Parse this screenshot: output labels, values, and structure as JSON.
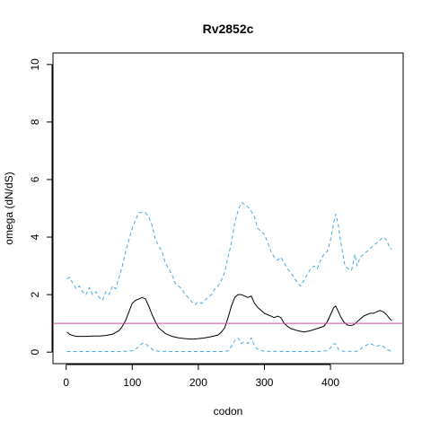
{
  "chart_data": {
    "type": "line",
    "title": "Rv2852c",
    "xlabel": "codon",
    "ylabel": "omega (dN/dS)",
    "xlim": [
      -20,
      510
    ],
    "ylim": [
      -0.4,
      10.4
    ],
    "x_ticks": [
      0,
      100,
      200,
      300,
      400
    ],
    "y_ticks": [
      0,
      2,
      4,
      6,
      8,
      10
    ],
    "grid": false,
    "reference_line": {
      "y": 1,
      "color": "#c050a0"
    },
    "series": [
      {
        "style": "dashed",
        "color": "#4aa8e0",
        "points": [
          [
            1,
            2.55
          ],
          [
            5,
            2.6
          ],
          [
            10,
            2.4
          ],
          [
            15,
            2.2
          ],
          [
            20,
            2.3
          ],
          [
            25,
            2.1
          ],
          [
            30,
            2.0
          ],
          [
            35,
            2.25
          ],
          [
            40,
            2.0
          ],
          [
            45,
            2.1
          ],
          [
            50,
            1.9
          ],
          [
            55,
            1.8
          ],
          [
            60,
            2.1
          ],
          [
            65,
            2.0
          ],
          [
            70,
            2.3
          ],
          [
            75,
            2.2
          ],
          [
            80,
            2.6
          ],
          [
            85,
            3.0
          ],
          [
            90,
            3.5
          ],
          [
            95,
            3.9
          ],
          [
            100,
            4.3
          ],
          [
            105,
            4.6
          ],
          [
            110,
            4.85
          ],
          [
            115,
            4.85
          ],
          [
            120,
            4.85
          ],
          [
            125,
            4.7
          ],
          [
            130,
            4.4
          ],
          [
            135,
            3.9
          ],
          [
            140,
            3.7
          ],
          [
            145,
            3.5
          ],
          [
            150,
            3.1
          ],
          [
            155,
            2.9
          ],
          [
            160,
            2.7
          ],
          [
            165,
            2.4
          ],
          [
            170,
            2.3
          ],
          [
            175,
            2.2
          ],
          [
            180,
            2.0
          ],
          [
            185,
            1.9
          ],
          [
            190,
            1.75
          ],
          [
            195,
            1.65
          ],
          [
            200,
            1.75
          ],
          [
            205,
            1.7
          ],
          [
            210,
            1.8
          ],
          [
            215,
            1.9
          ],
          [
            220,
            2.0
          ],
          [
            225,
            2.2
          ],
          [
            230,
            2.3
          ],
          [
            235,
            2.5
          ],
          [
            240,
            2.8
          ],
          [
            245,
            3.3
          ],
          [
            250,
            3.8
          ],
          [
            255,
            4.5
          ],
          [
            260,
            4.9
          ],
          [
            265,
            5.2
          ],
          [
            270,
            5.15
          ],
          [
            275,
            5.05
          ],
          [
            280,
            4.9
          ],
          [
            285,
            4.7
          ],
          [
            290,
            4.3
          ],
          [
            295,
            4.2
          ],
          [
            300,
            4.1
          ],
          [
            305,
            3.8
          ],
          [
            310,
            3.5
          ],
          [
            315,
            3.3
          ],
          [
            320,
            3.2
          ],
          [
            325,
            3.3
          ],
          [
            330,
            3.1
          ],
          [
            335,
            2.9
          ],
          [
            340,
            2.75
          ],
          [
            345,
            2.6
          ],
          [
            350,
            2.4
          ],
          [
            355,
            2.3
          ],
          [
            360,
            2.5
          ],
          [
            365,
            2.7
          ],
          [
            370,
            2.9
          ],
          [
            375,
            3.0
          ],
          [
            380,
            2.9
          ],
          [
            385,
            3.2
          ],
          [
            390,
            3.4
          ],
          [
            395,
            3.5
          ],
          [
            400,
            3.9
          ],
          [
            405,
            4.5
          ],
          [
            408,
            4.8
          ],
          [
            412,
            4.4
          ],
          [
            415,
            3.9
          ],
          [
            418,
            3.5
          ],
          [
            422,
            3.0
          ],
          [
            427,
            2.9
          ],
          [
            432,
            2.85
          ],
          [
            437,
            3.4
          ],
          [
            440,
            3.0
          ],
          [
            445,
            3.3
          ],
          [
            450,
            3.4
          ],
          [
            455,
            3.5
          ],
          [
            460,
            3.6
          ],
          [
            465,
            3.7
          ],
          [
            470,
            3.8
          ],
          [
            475,
            3.9
          ],
          [
            480,
            4.0
          ],
          [
            485,
            3.9
          ],
          [
            490,
            3.6
          ],
          [
            493,
            3.6
          ]
        ]
      },
      {
        "style": "solid",
        "color": "#000000",
        "points": [
          [
            1,
            0.7
          ],
          [
            5,
            0.62
          ],
          [
            10,
            0.58
          ],
          [
            15,
            0.55
          ],
          [
            20,
            0.55
          ],
          [
            30,
            0.55
          ],
          [
            40,
            0.56
          ],
          [
            50,
            0.56
          ],
          [
            60,
            0.58
          ],
          [
            70,
            0.62
          ],
          [
            80,
            0.75
          ],
          [
            85,
            0.9
          ],
          [
            90,
            1.1
          ],
          [
            95,
            1.4
          ],
          [
            100,
            1.7
          ],
          [
            105,
            1.8
          ],
          [
            110,
            1.85
          ],
          [
            115,
            1.9
          ],
          [
            120,
            1.85
          ],
          [
            125,
            1.6
          ],
          [
            130,
            1.3
          ],
          [
            135,
            1.05
          ],
          [
            140,
            0.85
          ],
          [
            145,
            0.75
          ],
          [
            150,
            0.65
          ],
          [
            160,
            0.55
          ],
          [
            170,
            0.5
          ],
          [
            180,
            0.47
          ],
          [
            190,
            0.45
          ],
          [
            200,
            0.47
          ],
          [
            210,
            0.5
          ],
          [
            220,
            0.54
          ],
          [
            230,
            0.6
          ],
          [
            235,
            0.7
          ],
          [
            240,
            0.85
          ],
          [
            245,
            1.2
          ],
          [
            250,
            1.6
          ],
          [
            255,
            1.9
          ],
          [
            260,
            2.0
          ],
          [
            265,
            2.0
          ],
          [
            270,
            1.95
          ],
          [
            275,
            1.9
          ],
          [
            280,
            1.95
          ],
          [
            285,
            1.7
          ],
          [
            290,
            1.55
          ],
          [
            295,
            1.45
          ],
          [
            300,
            1.35
          ],
          [
            305,
            1.3
          ],
          [
            310,
            1.25
          ],
          [
            315,
            1.2
          ],
          [
            320,
            1.25
          ],
          [
            325,
            1.2
          ],
          [
            330,
            1.0
          ],
          [
            335,
            0.9
          ],
          [
            340,
            0.82
          ],
          [
            350,
            0.75
          ],
          [
            360,
            0.7
          ],
          [
            370,
            0.75
          ],
          [
            380,
            0.82
          ],
          [
            390,
            0.9
          ],
          [
            395,
            1.05
          ],
          [
            400,
            1.3
          ],
          [
            405,
            1.55
          ],
          [
            408,
            1.6
          ],
          [
            412,
            1.4
          ],
          [
            415,
            1.25
          ],
          [
            420,
            1.05
          ],
          [
            425,
            0.95
          ],
          [
            430,
            0.92
          ],
          [
            435,
            0.95
          ],
          [
            440,
            1.05
          ],
          [
            445,
            1.15
          ],
          [
            450,
            1.25
          ],
          [
            455,
            1.3
          ],
          [
            460,
            1.35
          ],
          [
            465,
            1.35
          ],
          [
            470,
            1.4
          ],
          [
            475,
            1.45
          ],
          [
            480,
            1.4
          ],
          [
            485,
            1.3
          ],
          [
            490,
            1.15
          ],
          [
            493,
            1.1
          ]
        ]
      },
      {
        "style": "dashed",
        "color": "#4aa8e0",
        "points": [
          [
            1,
            0.02
          ],
          [
            20,
            0.02
          ],
          [
            40,
            0.02
          ],
          [
            60,
            0.02
          ],
          [
            80,
            0.02
          ],
          [
            90,
            0.03
          ],
          [
            100,
            0.05
          ],
          [
            105,
            0.1
          ],
          [
            110,
            0.2
          ],
          [
            115,
            0.3
          ],
          [
            120,
            0.3
          ],
          [
            125,
            0.2
          ],
          [
            130,
            0.1
          ],
          [
            135,
            0.05
          ],
          [
            140,
            0.03
          ],
          [
            160,
            0.02
          ],
          [
            200,
            0.02
          ],
          [
            240,
            0.02
          ],
          [
            245,
            0.05
          ],
          [
            250,
            0.2
          ],
          [
            255,
            0.4
          ],
          [
            260,
            0.5
          ],
          [
            265,
            0.3
          ],
          [
            270,
            0.35
          ],
          [
            275,
            0.3
          ],
          [
            280,
            0.5
          ],
          [
            285,
            0.2
          ],
          [
            290,
            0.1
          ],
          [
            295,
            0.05
          ],
          [
            300,
            0.03
          ],
          [
            340,
            0.02
          ],
          [
            380,
            0.02
          ],
          [
            395,
            0.05
          ],
          [
            400,
            0.15
          ],
          [
            405,
            0.3
          ],
          [
            408,
            0.28
          ],
          [
            412,
            0.1
          ],
          [
            415,
            0.05
          ],
          [
            420,
            0.03
          ],
          [
            440,
            0.03
          ],
          [
            445,
            0.1
          ],
          [
            450,
            0.2
          ],
          [
            455,
            0.25
          ],
          [
            460,
            0.3
          ],
          [
            465,
            0.25
          ],
          [
            470,
            0.2
          ],
          [
            475,
            0.25
          ],
          [
            480,
            0.2
          ],
          [
            485,
            0.1
          ],
          [
            490,
            0.05
          ],
          [
            493,
            0.05
          ]
        ]
      }
    ]
  }
}
